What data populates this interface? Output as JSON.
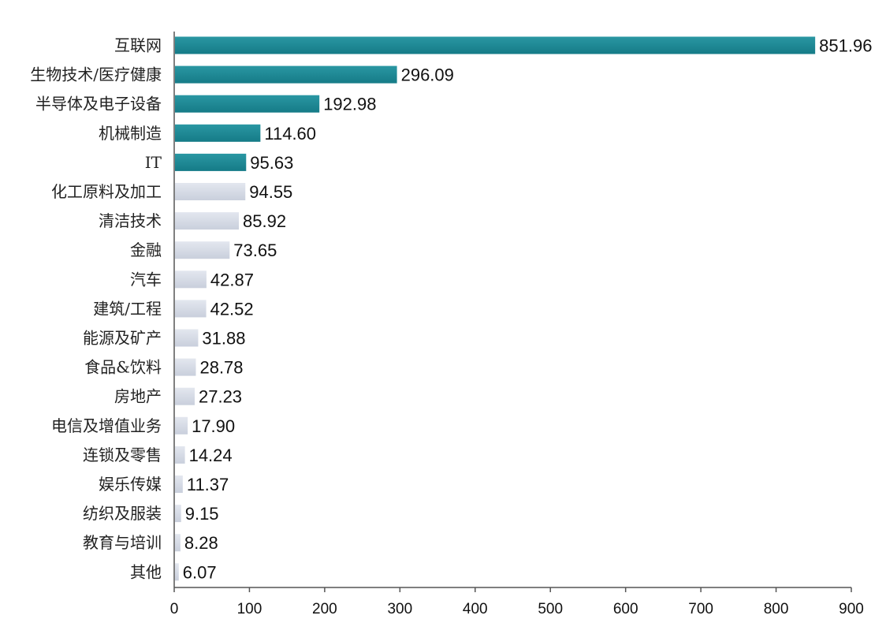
{
  "chart_data": {
    "type": "bar",
    "orientation": "horizontal",
    "categories": [
      "互联网",
      "生物技术/医疗健康",
      "半导体及电子设备",
      "机械制造",
      "IT",
      "化工原料及加工",
      "清洁技术",
      "金融",
      "汽车",
      "建筑/工程",
      "能源及矿产",
      "食品&饮料",
      "房地产",
      "电信及增值业务",
      "连锁及零售",
      "娱乐传媒",
      "纺织及服装",
      "教育与培训",
      "其他"
    ],
    "values": [
      851.96,
      296.09,
      192.98,
      114.6,
      95.63,
      94.55,
      85.92,
      73.65,
      42.87,
      42.52,
      31.88,
      28.78,
      27.23,
      17.9,
      14.24,
      11.37,
      9.15,
      8.28,
      6.07
    ],
    "value_labels": [
      "851.96",
      "296.09",
      "192.98",
      "114.60",
      "95.63",
      "94.55",
      "85.92",
      "73.65",
      "42.87",
      "42.52",
      "31.88",
      "28.78",
      "27.23",
      "17.90",
      "14.24",
      "11.37",
      "9.15",
      "8.28",
      "6.07"
    ],
    "highlight_count": 5,
    "colors": {
      "highlight": "#1e8a96",
      "normal": "#d5dae6"
    },
    "xlim": [
      0,
      900
    ],
    "x_ticks": [
      0,
      100,
      200,
      300,
      400,
      500,
      600,
      700,
      800,
      900
    ],
    "title": "",
    "xlabel": "",
    "ylabel": "",
    "grid": false,
    "legend": "none"
  }
}
